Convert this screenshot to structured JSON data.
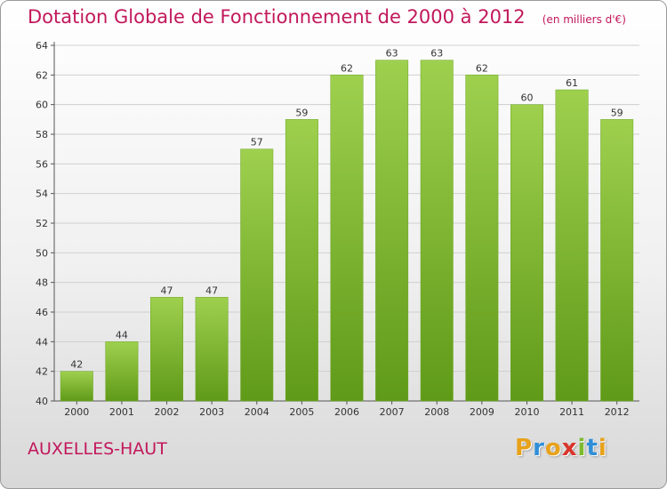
{
  "chart_data": {
    "type": "bar",
    "title": "Dotation Globale de Fonctionnement de 2000 à 2012",
    "subtitle": "(en milliers d'€)",
    "categories": [
      "2000",
      "2001",
      "2002",
      "2003",
      "2004",
      "2005",
      "2006",
      "2007",
      "2008",
      "2009",
      "2010",
      "2011",
      "2012"
    ],
    "values": [
      42,
      44,
      47,
      47,
      57,
      59,
      62,
      63,
      63,
      62,
      60,
      61,
      59
    ],
    "ylim": [
      40,
      64
    ],
    "yticks": [
      40,
      42,
      44,
      46,
      48,
      50,
      52,
      54,
      56,
      58,
      60,
      62,
      64
    ],
    "xlabel": "",
    "ylabel": "",
    "grid": true,
    "bar_color": "#7cbb2e"
  },
  "footer": {
    "city": "AUXELLES-HAUT",
    "logo_letters": [
      "P",
      "r",
      "o",
      "x",
      "i",
      "t",
      "i"
    ],
    "logo_colors": [
      "#e8a21a",
      "#2f8fd8",
      "#e8a21a",
      "#d9342b",
      "#7cbb2e",
      "#2f8fd8",
      "#e8a21a"
    ]
  }
}
